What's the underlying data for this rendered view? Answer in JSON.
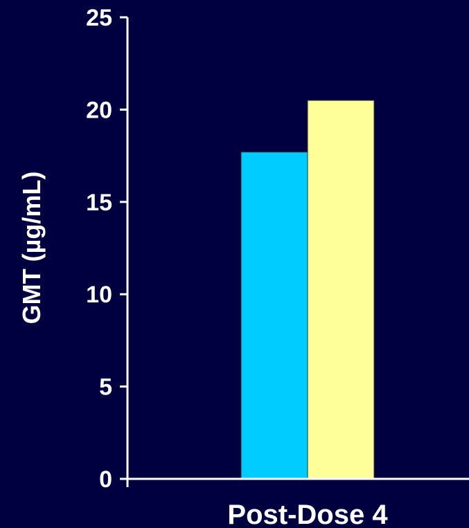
{
  "chart_data": {
    "type": "bar",
    "categories": [
      "Post-Dose 4"
    ],
    "series": [
      {
        "values": [
          17.7
        ],
        "color": "#00ccff"
      },
      {
        "values": [
          20.5
        ],
        "color": "#ffff99"
      }
    ],
    "title": "",
    "xlabel": "",
    "ylabel": "GMT (µg/mL)",
    "ylim": [
      0,
      25
    ],
    "yticks": [
      0,
      5,
      10,
      15,
      20,
      25
    ],
    "ytick_labels": [
      "0",
      "5",
      "10",
      "15",
      "20",
      "25"
    ],
    "grid": false,
    "legend": "none"
  },
  "colors": {
    "background": "#000040",
    "axis": "#ffffff",
    "text": "#ffffff"
  }
}
